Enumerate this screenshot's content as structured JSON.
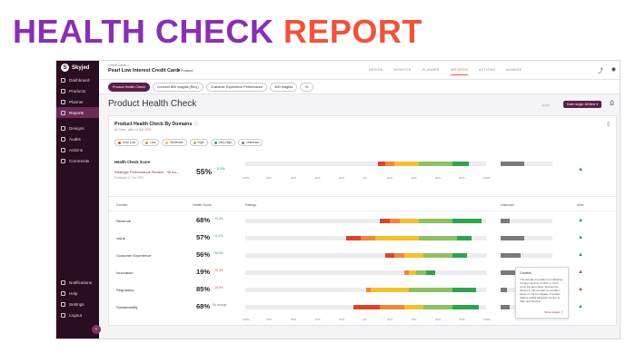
{
  "banner": {
    "word1": "HEALTH CHECK",
    "word2": "REPORT"
  },
  "colors": {
    "accent": "#f0533c",
    "sidebar": "#2a0d20",
    "primary": "#5a1f48",
    "very_low": "#d9442e",
    "low": "#f0853c",
    "moderate": "#f2c12e",
    "high": "#8cc063",
    "very_high": "#2ea44f",
    "unknown": "#7a7a7a"
  },
  "sidebar": {
    "brand": "Skyjed",
    "items": [
      {
        "label": "Dashboard",
        "icon": "dashboard-icon"
      },
      {
        "label": "Products",
        "icon": "box-icon"
      },
      {
        "label": "Planner",
        "icon": "calendar-icon"
      },
      {
        "label": "Reports",
        "icon": "chart-icon"
      },
      {
        "label": "Designs",
        "icon": "pencil-icon"
      },
      {
        "label": "Audits",
        "icon": "clipboard-icon"
      },
      {
        "label": "Actions",
        "icon": "bolt-icon"
      },
      {
        "label": "Comments",
        "icon": "comment-icon"
      }
    ],
    "bottom": [
      {
        "label": "Notifications",
        "icon": "bell-icon"
      },
      {
        "label": "Help",
        "icon": "help-icon"
      },
      {
        "label": "Settings",
        "icon": "gear-icon"
      },
      {
        "label": "Logout",
        "icon": "logout-icon"
      }
    ],
    "collapse": "‹"
  },
  "header": {
    "crumb": "Credit Cards  >",
    "title": "Pearl Low Interest Credit Card",
    "product_tag": "Product",
    "tabs": [
      "DESIGN",
      "MONITOR",
      "PLANNER",
      "INSIGHTS",
      "ACTIONS",
      "MANAGE"
    ],
    "active_tab": "INSIGHTS"
  },
  "subtabs": [
    "Product Health Check",
    "Connect 800 Insights (Req.)",
    "Customer Experience Performance",
    "800 Insights",
    "+5"
  ],
  "page": {
    "title": "Product Health Check",
    "date_range_label": "Apply",
    "date_range": "Date range: All time ▾"
  },
  "card": {
    "title": "Product Health Check By Domains",
    "subtitle": "All Time · with 14 Oct 2023",
    "legend": [
      {
        "label": "Very Low",
        "color": "#d9442e"
      },
      {
        "label": "Low",
        "color": "#f0853c"
      },
      {
        "label": "Moderate",
        "color": "#f2c12e"
      },
      {
        "label": "High",
        "color": "#8cc063"
      },
      {
        "label": "Very High",
        "color": "#2ea44f"
      },
      {
        "label": "Unknown",
        "color": "#7a7a7a"
      }
    ],
    "health_check": {
      "label": "Health Check Score",
      "link": "Strategic Performance Review - 30 Au...",
      "sub": "Published 11 Oct 2023",
      "score": "55%",
      "delta": "↑ 11.5%",
      "segments": [
        [
          0.55,
          0.58,
          "#d9442e"
        ],
        [
          0.58,
          0.62,
          "#f0853c"
        ],
        [
          0.62,
          0.72,
          "#f2c12e"
        ],
        [
          0.72,
          0.86,
          "#8cc063"
        ],
        [
          0.86,
          0.93,
          "#2ea44f"
        ]
      ],
      "unknown": 0.45
    },
    "axis_ticks": [
      "100%",
      "80%",
      "60%",
      "40%",
      "20%",
      "0%",
      "20%",
      "40%",
      "60%",
      "80%",
      "100%"
    ],
    "columns": {
      "domain": "Domain",
      "score": "Health Score",
      "ratings": "Ratings",
      "unknown": "Unknown",
      "alert": "Alert"
    },
    "rows": [
      {
        "label": "Revenue",
        "score": "68%",
        "delta": "↑ 20.0%",
        "trend": "up",
        "alert": "▲",
        "segments": [
          [
            0.56,
            0.6,
            "#d9442e"
          ],
          [
            0.6,
            0.64,
            "#f0853c"
          ],
          [
            0.64,
            0.72,
            "#f2c12e"
          ],
          [
            0.72,
            0.86,
            "#8cc063"
          ],
          [
            0.86,
            0.98,
            "#2ea44f"
          ]
        ],
        "unknown": 0.18
      },
      {
        "label": "Value",
        "score": "57%",
        "delta": "↑ 11.2%",
        "trend": "up",
        "alert": "▲",
        "segments": [
          [
            0.42,
            0.48,
            "#d9442e"
          ],
          [
            0.48,
            0.54,
            "#f0853c"
          ],
          [
            0.54,
            0.72,
            "#f2c12e"
          ],
          [
            0.72,
            0.88,
            "#8cc063"
          ],
          [
            0.88,
            0.94,
            "#2ea44f"
          ]
        ],
        "unknown": 0.46
      },
      {
        "label": "Customer Experience",
        "score": "56%",
        "delta": "↑ 50.0%",
        "trend": "up",
        "alert": "▲",
        "segments": [
          [
            0.58,
            0.62,
            "#d9442e"
          ],
          [
            0.62,
            0.66,
            "#f0853c"
          ],
          [
            0.66,
            0.74,
            "#f2c12e"
          ],
          [
            0.74,
            0.86,
            "#8cc063"
          ],
          [
            0.86,
            0.92,
            "#2ea44f"
          ]
        ],
        "unknown": 0.38
      },
      {
        "label": "Innovation",
        "score": "19%",
        "delta": "↓ 15.2%",
        "trend": "down",
        "alert": "▲",
        "segments": [
          [
            0.66,
            0.68,
            "#f0853c"
          ],
          [
            0.68,
            0.71,
            "#f2c12e"
          ],
          [
            0.71,
            0.75,
            "#8cc063"
          ],
          [
            0.75,
            0.79,
            "#2ea44f"
          ]
        ],
        "unknown": 0.62
      },
      {
        "label": "Regulatory",
        "score": "85%",
        "delta": "↓ 20.0%",
        "trend": "down",
        "alert": "▲",
        "segments": [
          [
            0.5,
            0.52,
            "#f0853c"
          ],
          [
            0.52,
            0.68,
            "#f2c12e"
          ],
          [
            0.68,
            0.86,
            "#8cc063"
          ],
          [
            0.86,
            0.96,
            "#2ea44f"
          ]
        ],
        "unknown": 0.12
      },
      {
        "label": "Sustainability",
        "score": "68%",
        "delta": "No change",
        "trend": "neutral",
        "alert": "▲",
        "segments": [
          [
            0.45,
            0.56,
            "#d9442e"
          ],
          [
            0.56,
            0.66,
            "#f0853c"
          ],
          [
            0.66,
            0.74,
            "#f2c12e"
          ],
          [
            0.74,
            0.86,
            "#8cc063"
          ],
          [
            0.86,
            0.97,
            "#2ea44f"
          ]
        ],
        "unknown": 0.18
      }
    ]
  },
  "tooltip": {
    "title": "Caution!",
    "body": "The domain Innovation is indicating a higher decline of 15% or more since the last check. Review the drivers in this domain to consider areas of risk to mitigate. Consider adding a Risk Mitigation Action to Plan and Review.",
    "link": "Show details ⓘ"
  }
}
